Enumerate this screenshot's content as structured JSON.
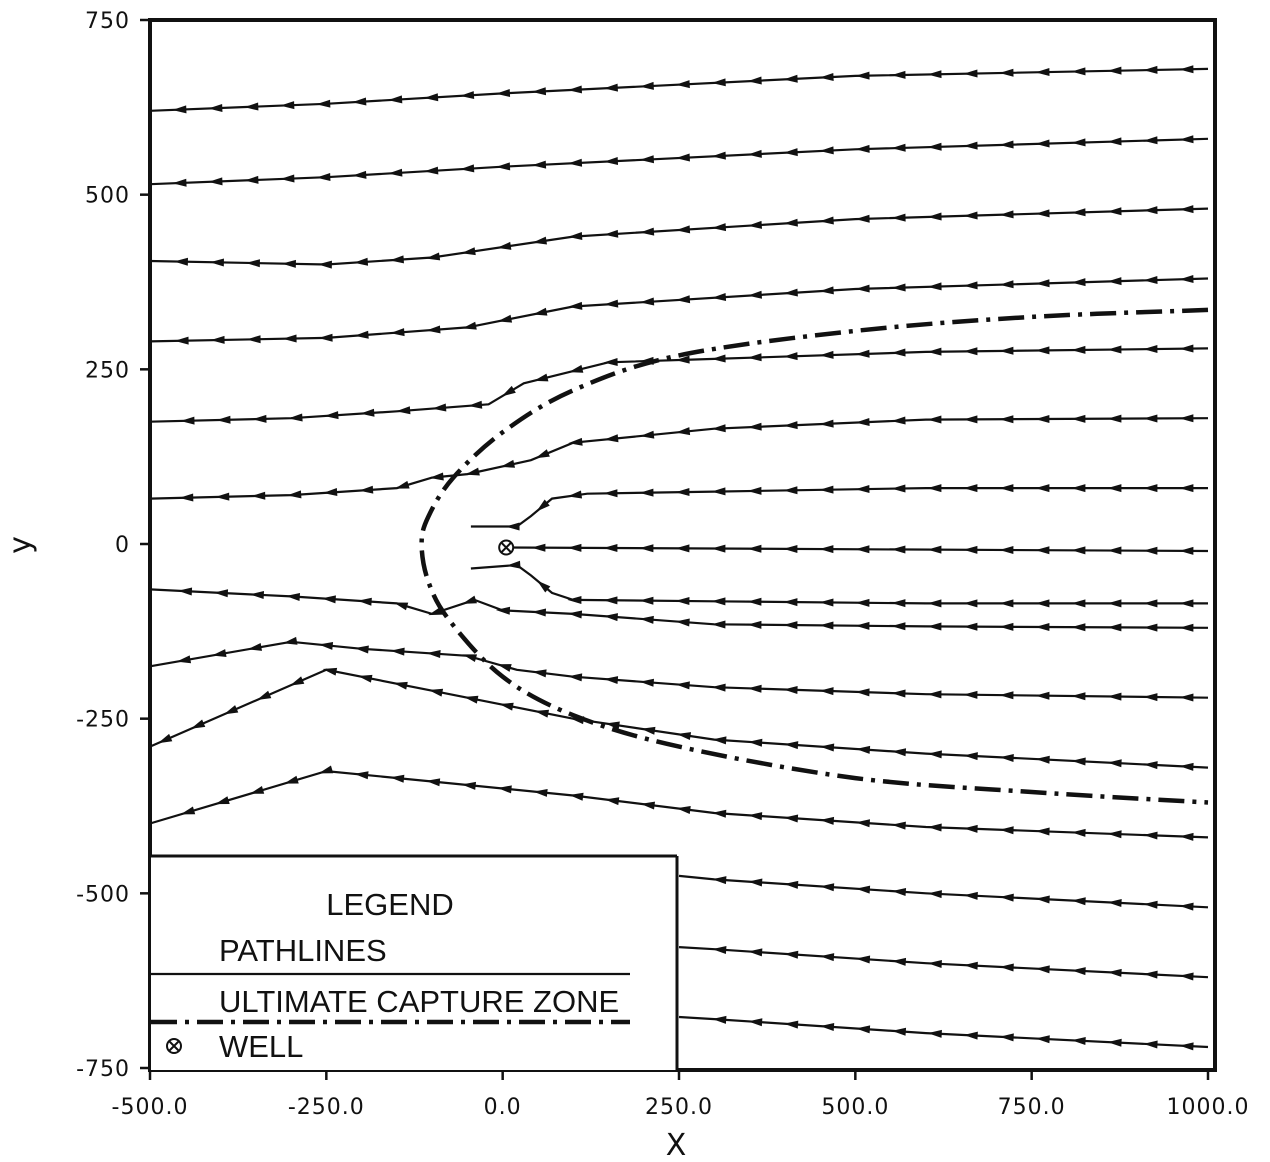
{
  "chart_data": {
    "type": "line",
    "xlabel": "X",
    "ylabel": "y",
    "xlim": [
      -500,
      1000
    ],
    "ylim": [
      -750,
      750
    ],
    "x_ticks": [
      "-500.0",
      "-250.0",
      "0.0",
      "250.0",
      "500.0",
      "750.0",
      "1000.0"
    ],
    "y_ticks": [
      "750",
      "500",
      "250",
      "0",
      "-250",
      "-500",
      "-750"
    ],
    "legend": {
      "title": "LEGEND",
      "entries": [
        "PATHLINES",
        "ULTIMATE CAPTURE ZONE",
        "WELL"
      ],
      "placement": "bottom-left"
    },
    "well": {
      "x": 5,
      "y": -5
    },
    "pathlines": {
      "flow_direction": "right-to-left",
      "lines": [
        {
          "points": [
            [
              1000,
              680
            ],
            [
              500,
              670
            ],
            [
              0,
              645
            ],
            [
              -250,
              630
            ],
            [
              -500,
              620
            ]
          ]
        },
        {
          "points": [
            [
              1000,
              580
            ],
            [
              500,
              565
            ],
            [
              0,
              540
            ],
            [
              -250,
              525
            ],
            [
              -500,
              515
            ]
          ]
        },
        {
          "points": [
            [
              1000,
              480
            ],
            [
              500,
              465
            ],
            [
              100,
              440
            ],
            [
              -100,
              410
            ],
            [
              -250,
              400
            ],
            [
              -500,
              405
            ]
          ]
        },
        {
          "points": [
            [
              1000,
              380
            ],
            [
              500,
              365
            ],
            [
              100,
              340
            ],
            [
              -50,
              310
            ],
            [
              -250,
              295
            ],
            [
              -500,
              290
            ]
          ]
        },
        {
          "points": [
            [
              1000,
              280
            ],
            [
              600,
              275
            ],
            [
              300,
              265
            ],
            [
              150,
              260
            ],
            [
              30,
              230
            ],
            [
              -20,
              200
            ],
            [
              -150,
              190
            ],
            [
              -300,
              180
            ],
            [
              -500,
              175
            ]
          ]
        },
        {
          "points": [
            [
              1000,
              180
            ],
            [
              600,
              178
            ],
            [
              300,
              165
            ],
            [
              100,
              145
            ],
            [
              40,
              120
            ],
            [
              -50,
              100
            ],
            [
              -100,
              95
            ],
            [
              -150,
              80
            ],
            [
              -300,
              70
            ],
            [
              -500,
              65
            ]
          ]
        },
        {
          "points": [
            [
              1000,
              80
            ],
            [
              600,
              80
            ],
            [
              300,
              75
            ],
            [
              120,
              72
            ],
            [
              70,
              65
            ],
            [
              40,
              40
            ],
            [
              20,
              25
            ],
            [
              -45,
              25
            ]
          ]
        },
        {
          "points": [
            [
              1000,
              -10
            ],
            [
              5,
              -5
            ]
          ]
        },
        {
          "points": [
            [
              1000,
              -85
            ],
            [
              600,
              -85
            ],
            [
              300,
              -82
            ],
            [
              100,
              -80
            ],
            [
              70,
              -70
            ],
            [
              40,
              -45
            ],
            [
              20,
              -30
            ],
            [
              -45,
              -35
            ]
          ]
        },
        {
          "points": [
            [
              1000,
              -120
            ],
            [
              600,
              -118
            ],
            [
              300,
              -115
            ],
            [
              100,
              -100
            ],
            [
              0,
              -95
            ],
            [
              -40,
              -80
            ],
            [
              -100,
              -100
            ],
            [
              -150,
              -85
            ],
            [
              -300,
              -75
            ],
            [
              -500,
              -65
            ]
          ]
        },
        {
          "points": [
            [
              1000,
              -220
            ],
            [
              600,
              -215
            ],
            [
              300,
              -205
            ],
            [
              100,
              -190
            ],
            [
              20,
              -180
            ],
            [
              -50,
              -160
            ],
            [
              -200,
              -150
            ],
            [
              -300,
              -140
            ],
            [
              -500,
              -175
            ]
          ]
        },
        {
          "points": [
            [
              1000,
              -320
            ],
            [
              600,
              -300
            ],
            [
              300,
              -280
            ],
            [
              100,
              -250
            ],
            [
              0,
              -230
            ],
            [
              -100,
              -210
            ],
            [
              -250,
              -180
            ],
            [
              -500,
              -290
            ]
          ]
        },
        {
          "points": [
            [
              1000,
              -420
            ],
            [
              600,
              -405
            ],
            [
              300,
              -385
            ],
            [
              100,
              -360
            ],
            [
              -100,
              -340
            ],
            [
              -250,
              -325
            ],
            [
              -500,
              -400
            ]
          ]
        },
        {
          "points": [
            [
              1000,
              -520
            ],
            [
              600,
              -500
            ],
            [
              300,
              -480
            ],
            [
              250,
              -475
            ]
          ]
        },
        {
          "points": [
            [
              1000,
              -620
            ],
            [
              600,
              -600
            ],
            [
              300,
              -580
            ],
            [
              250,
              -577
            ]
          ]
        },
        {
          "points": [
            [
              1000,
              -720
            ],
            [
              600,
              -700
            ],
            [
              300,
              -680
            ],
            [
              250,
              -677
            ]
          ]
        }
      ]
    },
    "capture_zone": {
      "description_points": [
        [
          1000,
          335
        ],
        [
          750,
          325
        ],
        [
          500,
          305
        ],
        [
          250,
          270
        ],
        [
          100,
          220
        ],
        [
          0,
          160
        ],
        [
          -70,
          95
        ],
        [
          -105,
          40
        ],
        [
          -115,
          0
        ],
        [
          -105,
          -55
        ],
        [
          -75,
          -110
        ],
        [
          0,
          -190
        ],
        [
          100,
          -245
        ],
        [
          250,
          -290
        ],
        [
          500,
          -335
        ],
        [
          750,
          -355
        ],
        [
          1000,
          -370
        ]
      ]
    }
  }
}
